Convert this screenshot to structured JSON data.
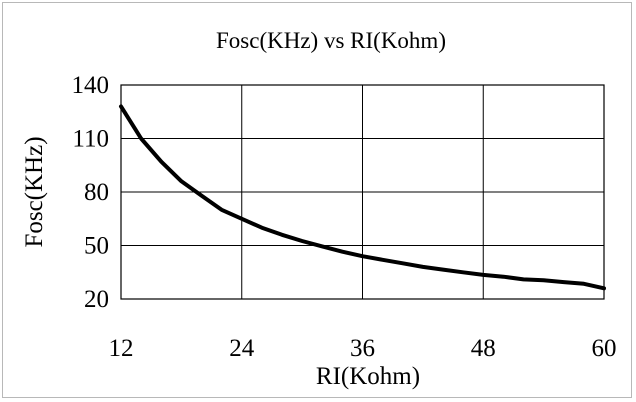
{
  "chart_data": {
    "type": "line",
    "title": "Fosc(KHz) vs RI(Kohm)",
    "xlabel": "RI(Kohm)",
    "ylabel": "Fosc(KHz)",
    "xlim": [
      12,
      60
    ],
    "ylim": [
      20,
      140
    ],
    "xticks": [
      12,
      24,
      36,
      48,
      60
    ],
    "yticks": [
      20,
      50,
      80,
      110,
      140
    ],
    "grid": true,
    "legend": "none",
    "line_color": "#000000",
    "series": [
      {
        "x": [
          12,
          14,
          16,
          18,
          20,
          22,
          24,
          26,
          28,
          30,
          32,
          34,
          36,
          38,
          40,
          42,
          44,
          46,
          48,
          50,
          52,
          54,
          56,
          58,
          60
        ],
        "values": [
          128,
          110,
          97,
          86,
          78,
          70,
          65,
          60,
          56,
          52.5,
          49.5,
          46.5,
          44,
          42,
          40,
          38,
          36.5,
          35,
          33.5,
          32.5,
          31,
          30.5,
          29.5,
          28.5,
          26
        ]
      }
    ]
  }
}
